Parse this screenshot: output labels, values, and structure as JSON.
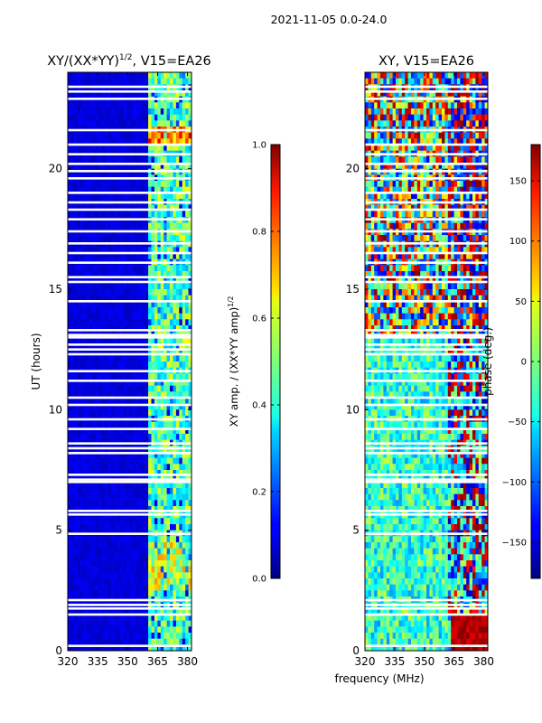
{
  "chart_data": [
    {
      "type": "heatmap",
      "id": "amp",
      "title": "XY/(XX*YY)",
      "title_exponent": "1/2",
      "title_suffix": ", V15=EA26",
      "xlabel": "",
      "ylabel": "UT (hours)",
      "xlim": [
        320,
        382
      ],
      "ylim": [
        0,
        24
      ],
      "xticks": [
        320,
        335,
        350,
        365,
        380
      ],
      "yticks": [
        0,
        5,
        10,
        15,
        20
      ],
      "grid": false,
      "colormap": "jet",
      "active_band_mhz": [
        360,
        382
      ],
      "colorbar": {
        "label": "XY amp. / (XX*YY amp)",
        "label_exponent": "1/2",
        "range": [
          0.0,
          1.0
        ],
        "ticks": [
          0.0,
          0.2,
          0.4,
          0.6,
          0.8,
          1.0
        ],
        "tick_labels": [
          "0.0",
          "0.2",
          "0.4",
          "0.6",
          "0.8",
          "1.0"
        ]
      }
    },
    {
      "type": "heatmap",
      "id": "phase",
      "title": "XY, V15=EA26",
      "xlabel": "frequency (MHz)",
      "ylabel": "",
      "xlim": [
        320,
        382
      ],
      "ylim": [
        0,
        24
      ],
      "xticks": [
        320,
        335,
        350,
        365,
        380
      ],
      "yticks": [
        0,
        5,
        10,
        15,
        20
      ],
      "grid": false,
      "colormap": "jet",
      "colorbar": {
        "label": "phase (deg.)",
        "range": [
          -180,
          180
        ],
        "ticks": [
          -150,
          -100,
          -50,
          0,
          50,
          100,
          150
        ],
        "tick_labels": [
          "−150",
          "−100",
          "−50",
          "0",
          "50",
          "100",
          "150"
        ]
      }
    }
  ],
  "figure": {
    "suptitle": "2021-11-05 0.0-24.0",
    "flagged_ut_hours": [
      0.2,
      1.5,
      1.75,
      1.9,
      2.1,
      4.85,
      5.65,
      5.8,
      7.0,
      7.1,
      7.3,
      8.2,
      8.4,
      8.6,
      9.2,
      9.6,
      10.2,
      10.5,
      11.2,
      11.6,
      12.3,
      12.5,
      12.7,
      13.0,
      13.1,
      13.3,
      14.5,
      15.3,
      15.5,
      16.1,
      16.5,
      16.9,
      17.4,
      17.9,
      18.3,
      18.6,
      19.0,
      19.6,
      19.9,
      20.2,
      20.6,
      21.0,
      21.6,
      22.9,
      23.2,
      23.4
    ]
  }
}
